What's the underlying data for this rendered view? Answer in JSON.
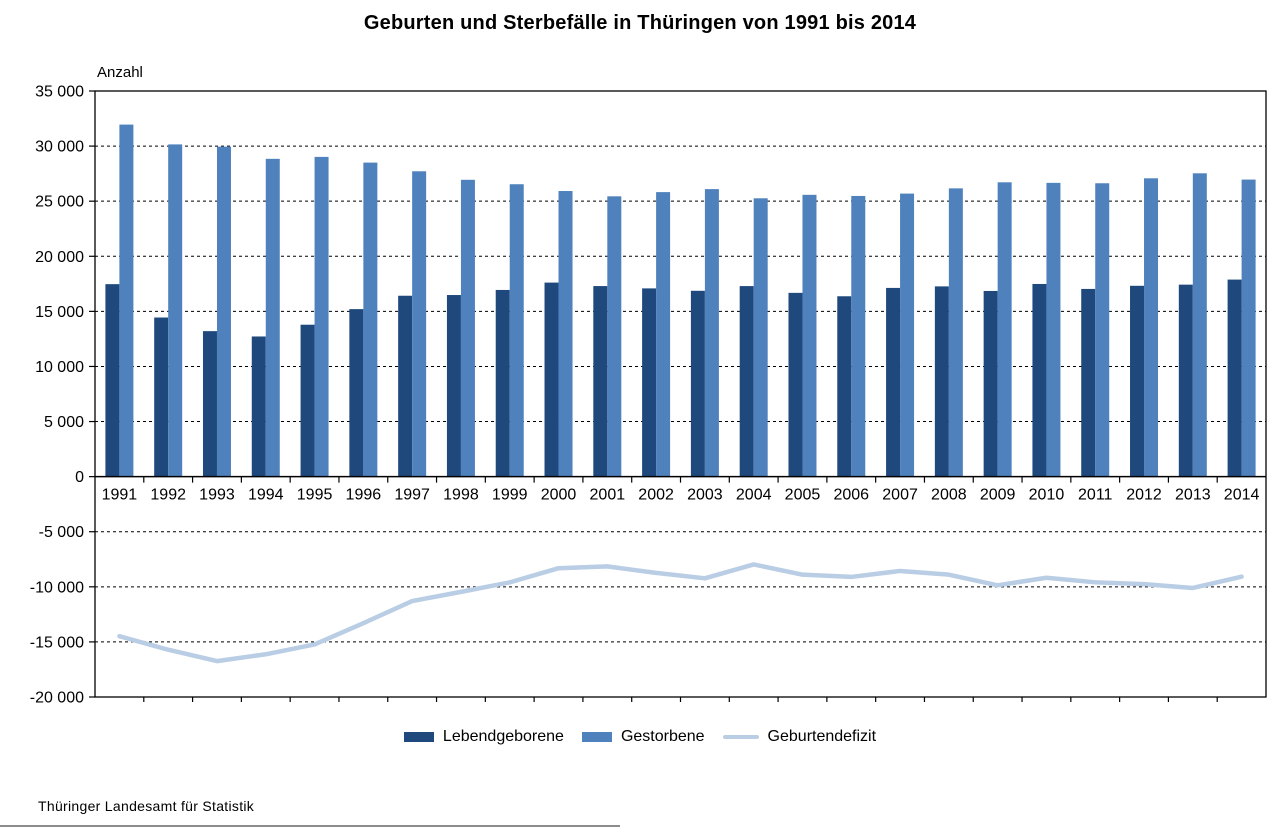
{
  "title": "Geburten und Sterbefälle in Thüringen von 1991 bis 2014",
  "axis_label": "Anzahl",
  "footer": "Thüringer Landesamt für Statistik",
  "colors": {
    "births_bar": "#1F497D",
    "deaths_bar": "#4F81BD",
    "deficit_line": "#B9CDE5",
    "axis": "#000000"
  },
  "legend": [
    {
      "label": "Lebendgeborene",
      "type": "bar",
      "color": "#1F497D"
    },
    {
      "label": "Gestorbene",
      "type": "bar",
      "color": "#4F81BD"
    },
    {
      "label": "Geburtendefizit",
      "type": "line",
      "color": "#B9CDE5"
    }
  ],
  "chart_data": {
    "type": "bar",
    "title": "Geburten und Sterbefälle in Thüringen von 1991 bis 2014",
    "ylabel": "Anzahl",
    "xlabel": "",
    "ylim": [
      -20000,
      35000
    ],
    "ytick_step": 5000,
    "grid": true,
    "legend_position": "bottom",
    "categories": [
      "1991",
      "1992",
      "1993",
      "1994",
      "1995",
      "1996",
      "1997",
      "1998",
      "1999",
      "2000",
      "2001",
      "2002",
      "2003",
      "2004",
      "2005",
      "2006",
      "2007",
      "2008",
      "2009",
      "2010",
      "2011",
      "2012",
      "2013",
      "2014"
    ],
    "yticks": [
      {
        "value": 35000,
        "label": "35 000"
      },
      {
        "value": 30000,
        "label": "30 000"
      },
      {
        "value": 25000,
        "label": "25 000"
      },
      {
        "value": 20000,
        "label": "20 000"
      },
      {
        "value": 15000,
        "label": "15 000"
      },
      {
        "value": 10000,
        "label": "10 000"
      },
      {
        "value": 5000,
        "label": "5 000"
      },
      {
        "value": 0,
        "label": "0"
      },
      {
        "value": -5000,
        "label": "-5 000"
      },
      {
        "value": -10000,
        "label": "-10 000"
      },
      {
        "value": -15000,
        "label": "-15 000"
      },
      {
        "value": -20000,
        "label": "-20 000"
      }
    ],
    "series": [
      {
        "name": "Lebendgeborene",
        "type": "bar",
        "color": "#1F497D",
        "values": [
          17470,
          14442,
          13205,
          12721,
          13788,
          15204,
          16418,
          16482,
          16943,
          17611,
          17296,
          17085,
          16867,
          17294,
          16679,
          16371,
          17128,
          17267,
          16852,
          17486,
          17036,
          17320,
          17425,
          17884
        ]
      },
      {
        "name": "Gestorbene",
        "type": "bar",
        "color": "#4F81BD",
        "values": [
          31952,
          30153,
          29946,
          28843,
          29020,
          28501,
          27713,
          26940,
          26538,
          25922,
          25441,
          25823,
          26096,
          25262,
          25577,
          25474,
          25688,
          26164,
          26713,
          26663,
          26627,
          27076,
          27529,
          26962
        ]
      },
      {
        "name": "Geburtendefizit",
        "type": "line",
        "color": "#B9CDE5",
        "values": [
          -14482,
          -15711,
          -16741,
          -16122,
          -15232,
          -13297,
          -11295,
          -10458,
          -9595,
          -8311,
          -8145,
          -8738,
          -9229,
          -7968,
          -8898,
          -9103,
          -8560,
          -8897,
          -9861,
          -9177,
          -9591,
          -9756,
          -10104,
          -9078
        ]
      }
    ]
  }
}
